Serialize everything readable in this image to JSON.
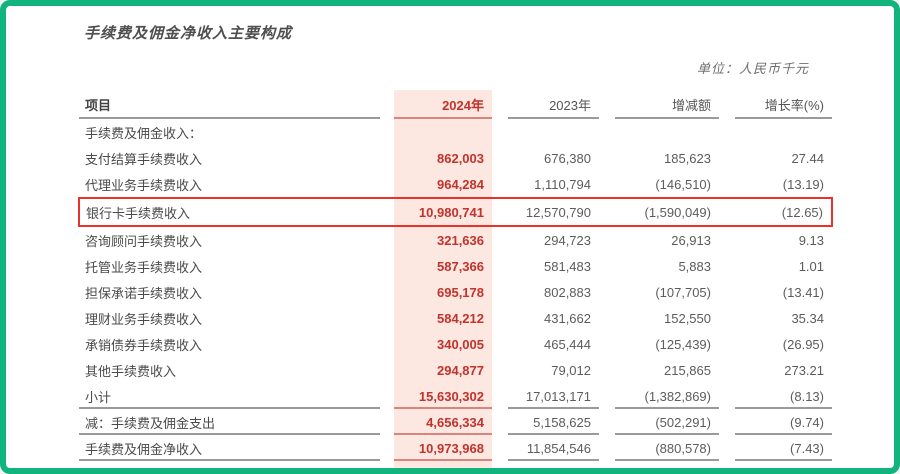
{
  "page": {
    "title": "手续费及佣金净收入主要构成",
    "unit_note": "单位：人民币千元"
  },
  "colors": {
    "frame_green": "#12b47e",
    "column_pink": "#fce7e1",
    "value_red": "#c2332c",
    "salmon_rule": "#d9847c",
    "annotation_red": "#e8322a",
    "gray_rule": "#9a9a9a",
    "label_gray": "#4a4a4a",
    "value_gray": "#5c5c5c",
    "note_gray": "#6f6f6f"
  },
  "table": {
    "columns": [
      "项目",
      "2024年",
      "2023年",
      "增减额",
      "增长率(%)"
    ],
    "highlighted_row_label": "银行卡手续费收入",
    "rows": [
      {
        "label": "手续费及佣金收入：",
        "y2024": "",
        "y2023": "",
        "change": "",
        "rate": ""
      },
      {
        "label": "支付结算手续费收入",
        "y2024": "862,003",
        "y2023": "676,380",
        "change": "185,623",
        "rate": "27.44"
      },
      {
        "label": "代理业务手续费收入",
        "y2024": "964,284",
        "y2023": "1,110,794",
        "change": "(146,510)",
        "rate": "(13.19)"
      },
      {
        "label": "银行卡手续费收入",
        "y2024": "10,980,741",
        "y2023": "12,570,790",
        "change": "(1,590,049)",
        "rate": "(12.65)"
      },
      {
        "label": "咨询顾问手续费收入",
        "y2024": "321,636",
        "y2023": "294,723",
        "change": "26,913",
        "rate": "9.13"
      },
      {
        "label": "托管业务手续费收入",
        "y2024": "587,366",
        "y2023": "581,483",
        "change": "5,883",
        "rate": "1.01"
      },
      {
        "label": "担保承诺手续费收入",
        "y2024": "695,178",
        "y2023": "802,883",
        "change": "(107,705)",
        "rate": "(13.41)"
      },
      {
        "label": "理财业务手续费收入",
        "y2024": "584,212",
        "y2023": "431,662",
        "change": "152,550",
        "rate": "35.34"
      },
      {
        "label": "承销债券手续费收入",
        "y2024": "340,005",
        "y2023": "465,444",
        "change": "(125,439)",
        "rate": "(26.95)"
      },
      {
        "label": "其他手续费收入",
        "y2024": "294,877",
        "y2023": "79,012",
        "change": "215,865",
        "rate": "273.21"
      },
      {
        "label": "小计",
        "y2024": "15,630,302",
        "y2023": "17,013,171",
        "change": "(1,382,869)",
        "rate": "(8.13)"
      },
      {
        "label": "减：手续费及佣金支出",
        "y2024": "4,656,334",
        "y2023": "5,158,625",
        "change": "(502,291)",
        "rate": "(9.74)"
      },
      {
        "label": "手续费及佣金净收入",
        "y2024": "10,973,968",
        "y2023": "11,854,546",
        "change": "(880,578)",
        "rate": "(7.43)"
      }
    ]
  }
}
